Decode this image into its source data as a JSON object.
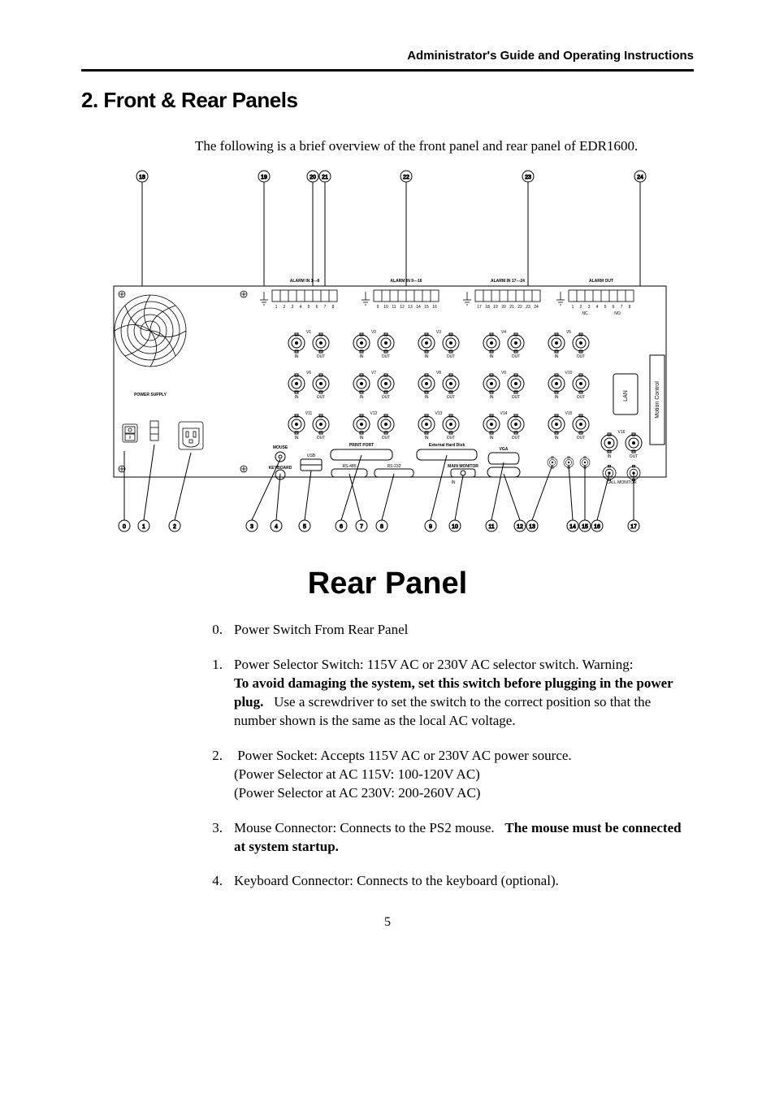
{
  "header": {
    "running_title": "Administrator's Guide and Operating Instructions"
  },
  "title": "2. Front & Rear Panels",
  "intro": "The following is a brief overview of the front panel and rear panel of EDR1600.",
  "diagram": {
    "caption": "Rear Panel",
    "top_callouts": [
      "18",
      "19",
      "20",
      "21",
      "22",
      "23",
      "24"
    ],
    "bottom_callouts": [
      "0",
      "1",
      "2",
      "3",
      "4",
      "5",
      "6",
      "7",
      "8",
      "9",
      "10",
      "11",
      "12",
      "13",
      "14",
      "15",
      "16",
      "17"
    ],
    "alarm_headers": [
      "ALARM IN 1---8",
      "ALARM IN 9---16",
      "ALARM IN 17---24",
      "ALARM OUT"
    ],
    "alarm_in1_labels": [
      "1",
      "2",
      "3",
      "4",
      "5",
      "6",
      "7",
      "8"
    ],
    "alarm_in2_labels": [
      "9",
      "10",
      "11",
      "12",
      "13",
      "14",
      "15",
      "16"
    ],
    "alarm_in3_labels": [
      "17",
      "18",
      "19",
      "20",
      "21",
      "22",
      "23",
      "24"
    ],
    "alarm_out_labels": [
      "1",
      "2",
      "3",
      "4",
      "5",
      "6",
      "7",
      "8",
      "NC",
      "NO"
    ],
    "power_supply_label": "POWER SUPPLY",
    "mouse_label": "MOUSE",
    "keyboard_label": "KEYBOARD",
    "usb_label": "USB",
    "print_port_label": "PRINT PORT",
    "rs485_label": "RS-485",
    "rs232_label": "RS-232",
    "ext_hd_label": "External Hard Disk",
    "main_monitor_label": "MAIN MONITOR",
    "vga_label": "VGA",
    "in_label": "IN",
    "out_label": "OUT",
    "call_monitor_label": "CALL MONITOR",
    "lan_label": "LAN",
    "motion_label": "Motion Control",
    "bnc_pairs": [
      {
        "row": 0,
        "v": [
          "V1",
          "V2",
          "V3",
          "V4",
          "V5"
        ]
      },
      {
        "row": 1,
        "v": [
          "V6",
          "V7",
          "V8",
          "V9",
          "V10"
        ]
      },
      {
        "row": 2,
        "v": [
          "V11",
          "V12",
          "V13",
          "V14",
          "V15"
        ]
      }
    ],
    "v16_label": "V16",
    "colors": {
      "line": "#000000",
      "bg": "#ffffff"
    }
  },
  "items": [
    {
      "n": "0.",
      "text": "Power Switch From Rear Panel"
    },
    {
      "n": "1.",
      "html": "Power Selector Switch: 115V AC or 230V AC selector switch. Warning:<br><b>To avoid damaging the system, set this switch before plugging in the power plug.</b>&nbsp;&nbsp;&nbsp;Use a screwdriver to set the switch to the correct position so that the number shown is the same as the local AC voltage."
    },
    {
      "n": "2.",
      "html": "&nbsp;Power Socket: Accepts 115V AC or 230V AC power source.<br>(Power Selector at AC 115V: 100-120V AC)<br>(Power Selector at AC 230V: 200-260V AC)"
    },
    {
      "n": "3.",
      "html": "Mouse Connector: Connects to the PS2 mouse.&nbsp;&nbsp;&nbsp;<b>The mouse must be connected at system startup.</b>"
    },
    {
      "n": "4.",
      "text": "Keyboard Connector: Connects to the keyboard (optional)."
    }
  ],
  "page_number": "5"
}
